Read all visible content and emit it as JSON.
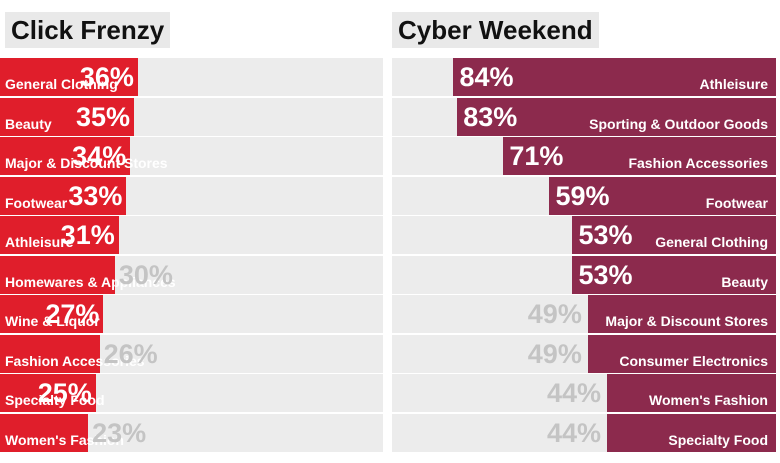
{
  "chart_data": [
    {
      "type": "bar",
      "orientation": "horizontal",
      "title": "Click Frenzy",
      "xlim": [
        0,
        100
      ],
      "categories": [
        "General Clothing",
        "Beauty",
        "Major & Discount Stores",
        "Footwear",
        "Athleisure",
        "Homewares & Appliances",
        "Wine & Liquor",
        "Fashion Accessories",
        "Specialty Food",
        "Women's Fashion"
      ],
      "values": [
        36,
        35,
        34,
        33,
        31,
        30,
        27,
        26,
        25,
        23
      ],
      "value_labels": [
        "36%",
        "35%",
        "34%",
        "33%",
        "31%",
        "30%",
        "27%",
        "26%",
        "25%",
        "23%"
      ],
      "label_inside": [
        true,
        true,
        true,
        true,
        true,
        false,
        true,
        false,
        true,
        false
      ],
      "bar_color": "#e01e2b"
    },
    {
      "type": "bar",
      "orientation": "horizontal",
      "title": "Cyber Weekend",
      "xlim": [
        0,
        100
      ],
      "categories": [
        "Athleisure",
        "Sporting & Outdoor Goods",
        "Fashion Accessories",
        "Footwear",
        "General Clothing",
        "Beauty",
        "Major & Discount Stores",
        "Consumer Electronics",
        "Women's Fashion",
        "Specialty Food"
      ],
      "values": [
        84,
        83,
        71,
        59,
        53,
        53,
        49,
        49,
        44,
        44
      ],
      "value_labels": [
        "84%",
        "83%",
        "71%",
        "59%",
        "53%",
        "53%",
        "49%",
        "49%",
        "44%",
        "44%"
      ],
      "label_inside": [
        true,
        true,
        true,
        true,
        true,
        true,
        false,
        false,
        false,
        false
      ],
      "bar_color": "#8c2a4d"
    }
  ],
  "colors": {
    "track": "#ececec",
    "title_background": "#e9e9e9",
    "outside_label": "#c4c4c4"
  }
}
